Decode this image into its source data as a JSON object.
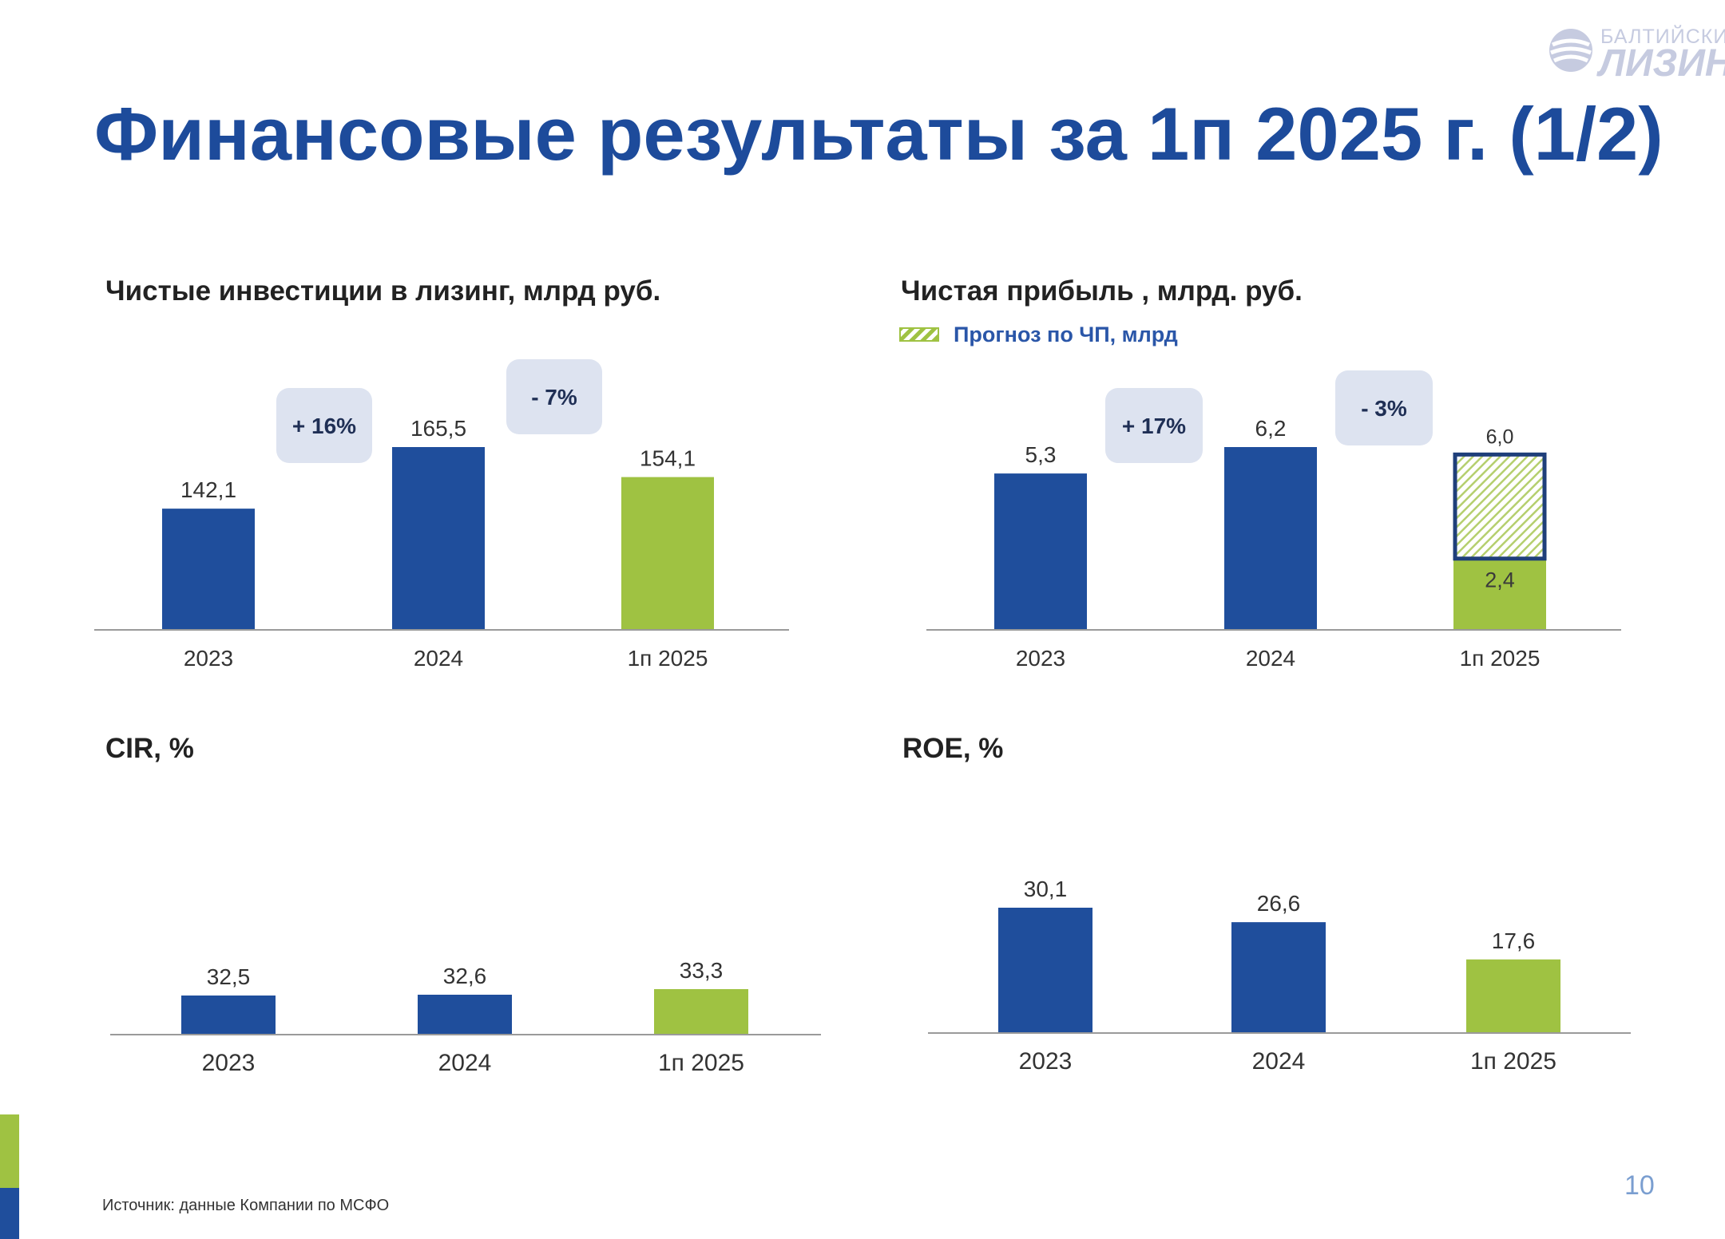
{
  "logo": {
    "line1": "БАЛТИЙСКИЙ",
    "line2": "ЛИЗИНГ"
  },
  "page": {
    "title": "Финансовые результаты за 1п 2025 г. (1/2)",
    "source": "Источник: данные Компании по МСФО",
    "page_number": "10"
  },
  "colors": {
    "title_blue": "#1d4b9b",
    "bar_blue": "#1f4e9c",
    "bar_green": "#9fc242",
    "badge_bg": "#dde3f0"
  },
  "legend": {
    "label": "Прогноз по ЧП, млрд",
    "swatch": "hatched-green"
  },
  "chart_data": [
    {
      "id": "net-investments",
      "type": "bar",
      "title": "Чистые инвестиции в лизинг, млрд руб.",
      "categories": [
        "2023",
        "2024",
        "1п 2025"
      ],
      "values": [
        142.1,
        165.5,
        154.1
      ],
      "value_labels": [
        "142,1",
        "165,5",
        "154,1"
      ],
      "colors": [
        "#1f4e9c",
        "#1f4e9c",
        "#9fc242"
      ],
      "changes": [
        {
          "label": "+ 16%",
          "between": [
            0,
            1
          ]
        },
        {
          "label": "- 7%",
          "between": [
            1,
            2
          ]
        }
      ]
    },
    {
      "id": "net-profit",
      "type": "bar",
      "title": "Чистая прибыль , млрд. руб.",
      "categories": [
        "2023",
        "2024",
        "1п 2025"
      ],
      "values": [
        5.3,
        6.2,
        2.4
      ],
      "value_labels": [
        "5,3",
        "6,2",
        "2,4"
      ],
      "forecast": {
        "index": 2,
        "value": 6.0,
        "label": "6,0"
      },
      "colors": [
        "#1f4e9c",
        "#1f4e9c",
        "#9fc242"
      ],
      "changes": [
        {
          "label": "+ 17%",
          "between": [
            0,
            1
          ]
        },
        {
          "label": "- 3%",
          "between": [
            1,
            2
          ]
        }
      ]
    },
    {
      "id": "cir",
      "type": "bar",
      "title": "CIR, %",
      "categories": [
        "2023",
        "2024",
        "1п 2025"
      ],
      "values": [
        32.5,
        32.6,
        33.3
      ],
      "value_labels": [
        "32,5",
        "32,6",
        "33,3"
      ],
      "colors": [
        "#1f4e9c",
        "#1f4e9c",
        "#9fc242"
      ]
    },
    {
      "id": "roe",
      "type": "bar",
      "title": "ROE, %",
      "categories": [
        "2023",
        "2024",
        "1п 2025"
      ],
      "values": [
        30.1,
        26.6,
        17.6
      ],
      "value_labels": [
        "30,1",
        "26,6",
        "17,6"
      ],
      "colors": [
        "#1f4e9c",
        "#1f4e9c",
        "#9fc242"
      ]
    }
  ]
}
